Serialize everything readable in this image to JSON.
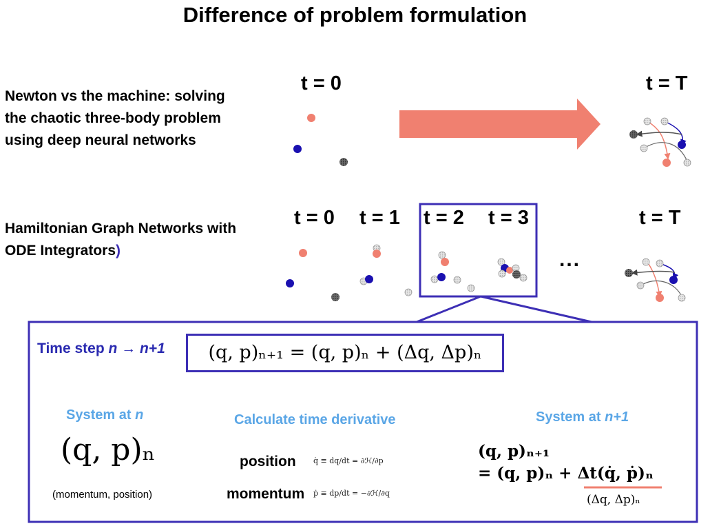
{
  "title": "Difference of problem formulation",
  "paper1": {
    "lines": [
      "Newton vs the machine: solving",
      "the chaotic three-body problem",
      "using deep neural networks"
    ]
  },
  "row1": {
    "t0": "t = 0",
    "tT": "t = T"
  },
  "paper2": {
    "line1": "Hamiltonian Graph Networks with",
    "line2": "ODE Integrators",
    "paren": ")"
  },
  "row2": {
    "t0": "t = 0",
    "t1": "t = 1",
    "t2": "t = 2",
    "t3": "t = 3",
    "dots": "...",
    "tT": "t = T"
  },
  "box": {
    "step_prefix": "Time step ",
    "step_n": "n",
    "step_arrow": " → ",
    "step_n1": "n+1",
    "update_equation": "(q, p)ₙ₊₁ = (q, p)ₙ + (Δq, Δp)ₙ",
    "col1": {
      "head_prefix": "System at ",
      "head_var": "n",
      "formula": "(q, p)ₙ",
      "note": "(momentum, position)"
    },
    "col2": {
      "head": "Calculate time derivative",
      "position_label": "position",
      "position_eq": "q̇ ≡ dq/dt = ∂ℋ/∂p",
      "momentum_label": "momentum",
      "momentum_eq": "ṗ ≡ dp/dt = −∂ℋ/∂q"
    },
    "col3": {
      "head_prefix": "System at ",
      "head_var": "n+1",
      "line1": "(q, p)ₙ₊₁",
      "line2_prefix": "= (q, p)ₙ + ",
      "line2_term": "Δt(q̇, ṗ)ₙ",
      "underbrace": "(Δq, Δp)ₙ"
    }
  },
  "colors": {
    "salmon": "#f08070",
    "blue_body": "#1a10b0",
    "box_border": "#3d2fb5",
    "heading_blue": "#5aa6e6",
    "step_blue": "#2a2ab0"
  }
}
